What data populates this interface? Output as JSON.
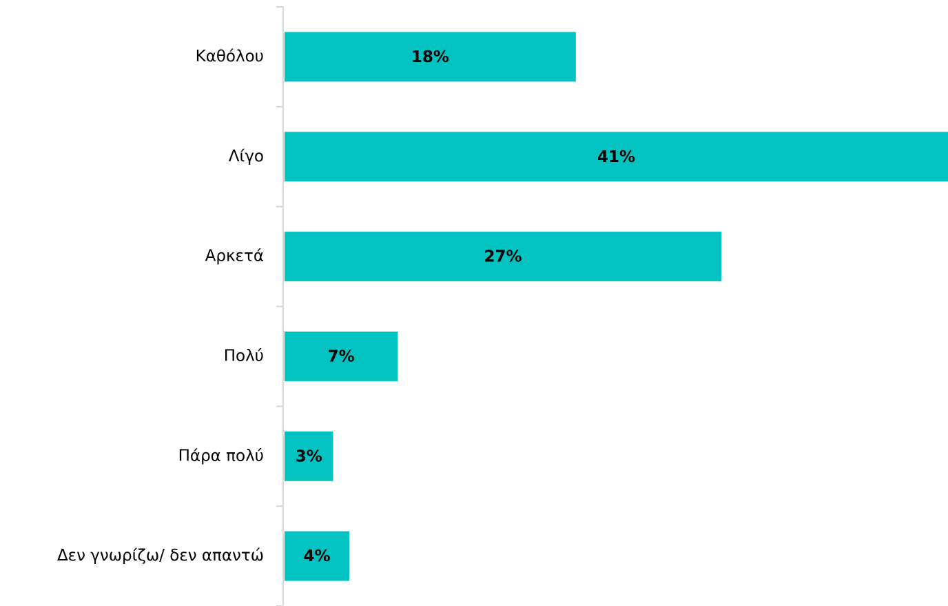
{
  "chart_data": {
    "type": "bar",
    "orientation": "horizontal",
    "categories": [
      "Καθόλου",
      "Λίγο",
      "Αρκετά",
      "Πολύ",
      "Πάρα πολύ",
      "Δεν γνωρίζω/ δεν απαντώ"
    ],
    "values": [
      18,
      41,
      27,
      7,
      3,
      4
    ],
    "value_labels": [
      "18%",
      "41%",
      "27%",
      "7%",
      "3%",
      "4%"
    ],
    "color": "#02c3c1"
  }
}
